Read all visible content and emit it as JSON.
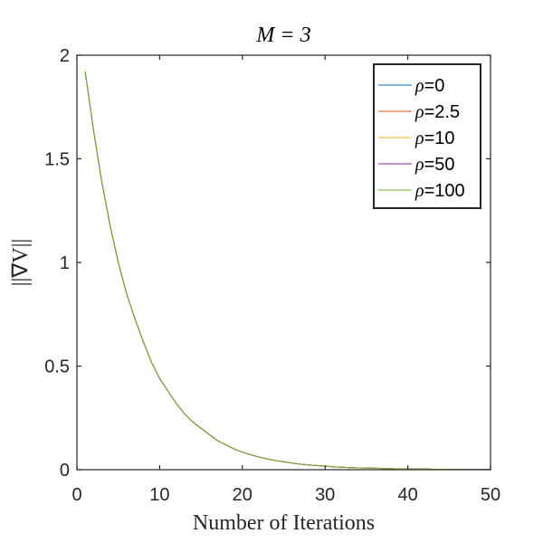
{
  "chart_data": {
    "type": "line",
    "title": "M = 3",
    "xlabel": "Number of Iterations",
    "ylabel": "||∇V||",
    "xlim": [
      0,
      50
    ],
    "ylim": [
      0,
      2
    ],
    "xticks": [
      0,
      10,
      20,
      30,
      40,
      50
    ],
    "xtick_labels": [
      "0",
      "10",
      "20",
      "30",
      "40",
      "50"
    ],
    "yticks": [
      0,
      0.5,
      1,
      1.5,
      2
    ],
    "ytick_labels": [
      "0",
      "0.5",
      "1",
      "1.5",
      "2"
    ],
    "grid": false,
    "legend_position": "top-right",
    "x": [
      1,
      2,
      3,
      4,
      5,
      6,
      7,
      8,
      9,
      10,
      11,
      12,
      13,
      14,
      15,
      16,
      17,
      18,
      19,
      20,
      21,
      22,
      23,
      24,
      25,
      26,
      27,
      28,
      29,
      30,
      31,
      32,
      33,
      34,
      35,
      36,
      37,
      38,
      39,
      40,
      41,
      42,
      43,
      44,
      45,
      46,
      47,
      48,
      49,
      50
    ],
    "series": [
      {
        "name": "ρ=0",
        "legend_symbol": "ρ",
        "legend_value": "=0",
        "color": "#0072BD",
        "values": [
          1.92,
          1.64,
          1.39,
          1.18,
          1.0,
          0.85,
          0.73,
          0.62,
          0.52,
          0.44,
          0.38,
          0.32,
          0.27,
          0.23,
          0.2,
          0.17,
          0.14,
          0.12,
          0.1,
          0.085,
          0.072,
          0.061,
          0.052,
          0.044,
          0.038,
          0.032,
          0.027,
          0.023,
          0.02,
          0.017,
          0.014,
          0.012,
          0.01,
          0.009,
          0.008,
          0.007,
          0.006,
          0.005,
          0.004,
          0.004,
          0.003,
          0.003,
          0.002,
          0.002,
          0.002,
          0.001,
          0.001,
          0.001,
          0.001,
          0.001
        ]
      },
      {
        "name": "ρ=2.5",
        "legend_symbol": "ρ",
        "legend_value": "=2.5",
        "color": "#D95319",
        "values": [
          1.92,
          1.64,
          1.39,
          1.18,
          1.0,
          0.85,
          0.73,
          0.62,
          0.52,
          0.44,
          0.38,
          0.32,
          0.27,
          0.23,
          0.2,
          0.17,
          0.14,
          0.12,
          0.1,
          0.085,
          0.072,
          0.061,
          0.052,
          0.044,
          0.038,
          0.032,
          0.027,
          0.023,
          0.02,
          0.017,
          0.014,
          0.012,
          0.01,
          0.009,
          0.008,
          0.007,
          0.006,
          0.005,
          0.004,
          0.004,
          0.003,
          0.003,
          0.002,
          0.002,
          0.002,
          0.001,
          0.001,
          0.001,
          0.001,
          0.001
        ]
      },
      {
        "name": "ρ=10",
        "legend_symbol": "ρ",
        "legend_value": "=10",
        "color": "#EDB120",
        "values": [
          1.92,
          1.64,
          1.39,
          1.18,
          1.0,
          0.85,
          0.73,
          0.62,
          0.52,
          0.44,
          0.38,
          0.32,
          0.27,
          0.23,
          0.2,
          0.17,
          0.14,
          0.12,
          0.1,
          0.085,
          0.072,
          0.061,
          0.052,
          0.044,
          0.038,
          0.032,
          0.027,
          0.023,
          0.02,
          0.017,
          0.014,
          0.012,
          0.01,
          0.009,
          0.008,
          0.007,
          0.006,
          0.005,
          0.004,
          0.004,
          0.003,
          0.003,
          0.002,
          0.002,
          0.002,
          0.001,
          0.001,
          0.001,
          0.001,
          0.001
        ]
      },
      {
        "name": "ρ=50",
        "legend_symbol": "ρ",
        "legend_value": "=50",
        "color": "#7E2F8E",
        "values": [
          1.92,
          1.64,
          1.39,
          1.18,
          1.0,
          0.85,
          0.73,
          0.62,
          0.52,
          0.44,
          0.38,
          0.32,
          0.27,
          0.23,
          0.2,
          0.17,
          0.14,
          0.12,
          0.1,
          0.085,
          0.072,
          0.061,
          0.052,
          0.044,
          0.038,
          0.032,
          0.027,
          0.023,
          0.02,
          0.017,
          0.014,
          0.012,
          0.01,
          0.009,
          0.008,
          0.007,
          0.006,
          0.005,
          0.004,
          0.004,
          0.003,
          0.003,
          0.002,
          0.002,
          0.002,
          0.001,
          0.001,
          0.001,
          0.001,
          0.001
        ]
      },
      {
        "name": "ρ=100",
        "legend_symbol": "ρ",
        "legend_value": "=100",
        "color": "#77AC30",
        "values": [
          1.92,
          1.64,
          1.39,
          1.18,
          1.0,
          0.85,
          0.73,
          0.62,
          0.52,
          0.44,
          0.38,
          0.32,
          0.27,
          0.23,
          0.2,
          0.17,
          0.14,
          0.12,
          0.1,
          0.085,
          0.072,
          0.061,
          0.052,
          0.044,
          0.038,
          0.032,
          0.027,
          0.023,
          0.02,
          0.017,
          0.014,
          0.012,
          0.01,
          0.009,
          0.008,
          0.007,
          0.006,
          0.005,
          0.004,
          0.004,
          0.003,
          0.003,
          0.002,
          0.002,
          0.002,
          0.001,
          0.001,
          0.001,
          0.001,
          0.001
        ]
      }
    ]
  }
}
